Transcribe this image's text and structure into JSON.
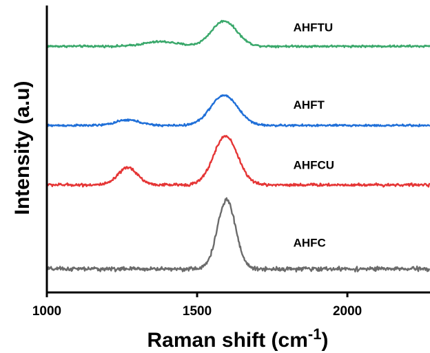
{
  "chart_data": {
    "type": "line",
    "xlabel": "Raman shift (cm",
    "xlabel_sup": "-1",
    "xlabel_close": ")",
    "ylabel": "Intensity (a.u)",
    "xlim": [
      1000,
      2275
    ],
    "ylim": [
      0,
      100
    ],
    "xticks": [
      1000,
      1500,
      2000
    ],
    "xtick_labels": [
      "1000",
      "1500",
      "2000"
    ],
    "y_ticks_visible": false,
    "grid": false,
    "series": [
      {
        "name": "AHFTU",
        "color": "#3aa86b",
        "baseline": 85.8,
        "noise": 0.35,
        "label_at": [
          1820,
          91
        ],
        "peaks": [
          {
            "center": 1380,
            "width": 55,
            "height": 1.6
          },
          {
            "center": 1590,
            "width": 42,
            "height": 8.8
          }
        ]
      },
      {
        "name": "AHFT",
        "color": "#1f6fd8",
        "baseline": 58.2,
        "noise": 0.35,
        "label_at": [
          1820,
          64
        ],
        "peaks": [
          {
            "center": 1270,
            "width": 40,
            "height": 1.9
          },
          {
            "center": 1590,
            "width": 45,
            "height": 10.5
          }
        ]
      },
      {
        "name": "AHFCU",
        "color": "#e53535",
        "baseline": 37.5,
        "noise": 0.5,
        "label_at": [
          1820,
          43
        ],
        "peaks": [
          {
            "center": 1270,
            "width": 32,
            "height": 6.0
          },
          {
            "center": 1595,
            "width": 40,
            "height": 17.0
          }
        ]
      },
      {
        "name": "AHFC",
        "color": "#6b6b6b",
        "baseline": 8.2,
        "noise": 0.7,
        "label_at": [
          1820,
          16
        ],
        "peaks": [
          {
            "center": 1598,
            "width": 30,
            "height": 24.0
          }
        ]
      }
    ]
  }
}
